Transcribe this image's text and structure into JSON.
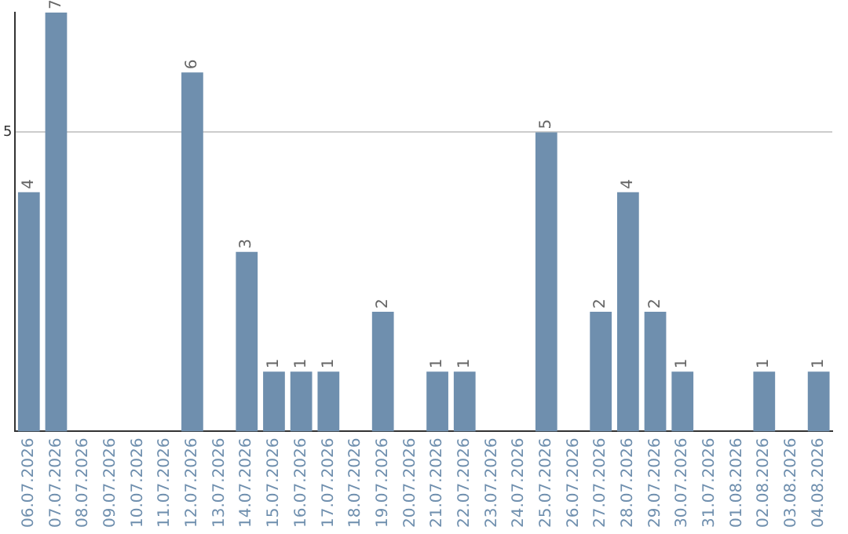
{
  "chart_data": {
    "type": "bar",
    "categories": [
      "06.07.2026",
      "07.07.2026",
      "08.07.2026",
      "09.07.2026",
      "10.07.2026",
      "11.07.2026",
      "12.07.2026",
      "13.07.2026",
      "14.07.2026",
      "15.07.2026",
      "16.07.2026",
      "17.07.2026",
      "18.07.2026",
      "19.07.2026",
      "20.07.2026",
      "21.07.2026",
      "22.07.2026",
      "23.07.2026",
      "24.07.2026",
      "25.07.2026",
      "26.07.2026",
      "27.07.2026",
      "28.07.2026",
      "29.07.2026",
      "30.07.2026",
      "31.07.2026",
      "01.08.2026",
      "02.08.2026",
      "03.08.2026",
      "04.08.2026"
    ],
    "values": [
      4,
      7,
      0,
      0,
      0,
      0,
      6,
      0,
      3,
      1,
      1,
      1,
      0,
      2,
      0,
      1,
      1,
      0,
      0,
      5,
      0,
      2,
      4,
      2,
      1,
      0,
      0,
      1,
      0,
      1
    ],
    "value_labels": [
      "4",
      "7",
      null,
      null,
      null,
      null,
      "6",
      null,
      "3",
      "1",
      "1",
      "1",
      null,
      "2",
      null,
      "1",
      "1",
      null,
      null,
      "5",
      null,
      "2",
      "4",
      "2",
      "1",
      null,
      null,
      "1",
      null,
      "1"
    ],
    "color": "#6f8fae",
    "ylim": [
      0,
      7
    ],
    "yticks": [
      5
    ],
    "grid": "y",
    "legend": false
  }
}
